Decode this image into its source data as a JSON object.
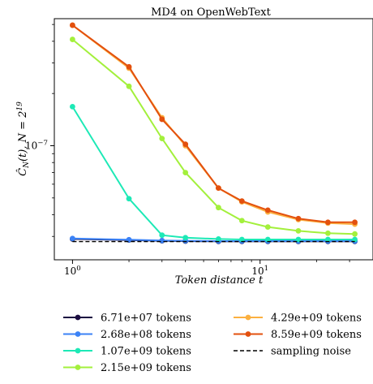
{
  "chart_data": {
    "type": "line",
    "title": "MD4 on OpenWebText",
    "xlabel": "Token distance t",
    "ylabel": "Ĉ_N(t), N = 2^19",
    "x_scale": "log",
    "y_scale": "log",
    "xlim": [
      0.8,
      40
    ],
    "ylim": [
      2.2e-08,
      5.4e-07
    ],
    "x_ticks": [
      {
        "value": 1,
        "label": "10^0"
      },
      {
        "value": 10,
        "label": "10^1"
      }
    ],
    "y_ticks": [
      {
        "value": 1e-07,
        "label": "10^-7"
      }
    ],
    "legend_position": "below",
    "x": [
      1,
      2,
      3,
      4,
      6,
      8,
      11,
      16,
      23,
      32
    ],
    "series": [
      {
        "name": "6.71e+07 tokens",
        "color": "#1b0c41",
        "style": "solid",
        "marker": true,
        "values": [
          2.9e-08,
          2.86e-08,
          2.83e-08,
          2.82e-08,
          2.81e-08,
          2.81e-08,
          2.81e-08,
          2.81e-08,
          2.81e-08,
          2.81e-08
        ]
      },
      {
        "name": "2.68e+08 tokens",
        "color": "#3b82f6",
        "style": "solid",
        "marker": true,
        "values": [
          2.92e-08,
          2.87e-08,
          2.84e-08,
          2.83e-08,
          2.82e-08,
          2.82e-08,
          2.82e-08,
          2.82e-08,
          2.82e-08,
          2.82e-08
        ]
      },
      {
        "name": "1.07e+09 tokens",
        "color": "#1de9b6",
        "style": "solid",
        "marker": true,
        "values": [
          1.68e-07,
          4.95e-08,
          3.05e-08,
          2.95e-08,
          2.9e-08,
          2.88e-08,
          2.88e-08,
          2.88e-08,
          2.88e-08,
          2.88e-08
        ]
      },
      {
        "name": "2.15e+09 tokens",
        "color": "#a3f03c",
        "style": "solid",
        "marker": true,
        "values": [
          4.1e-07,
          2.2e-07,
          1.1e-07,
          7e-08,
          4.4e-08,
          3.7e-08,
          3.4e-08,
          3.23e-08,
          3.13e-08,
          3.1e-08
        ]
      },
      {
        "name": "4.29e+09 tokens",
        "color": "#fbb040",
        "style": "solid",
        "marker": true,
        "values": [
          4.95e-07,
          2.8e-07,
          1.45e-07,
          1e-07,
          5.7e-08,
          4.75e-08,
          4.15e-08,
          3.75e-08,
          3.58e-08,
          3.53e-08
        ]
      },
      {
        "name": "8.59e+09 tokens",
        "color": "#e3500e",
        "style": "solid",
        "marker": true,
        "values": [
          4.95e-07,
          2.85e-07,
          1.42e-07,
          1.02e-07,
          5.7e-08,
          4.8e-08,
          4.25e-08,
          3.8e-08,
          3.62e-08,
          3.62e-08
        ]
      },
      {
        "name": "sampling noise",
        "color": "#000000",
        "style": "dashed",
        "marker": false,
        "values": [
          2.8e-08,
          2.8e-08,
          2.8e-08,
          2.8e-08,
          2.8e-08,
          2.8e-08,
          2.8e-08,
          2.8e-08,
          2.8e-08,
          2.8e-08
        ]
      }
    ]
  }
}
